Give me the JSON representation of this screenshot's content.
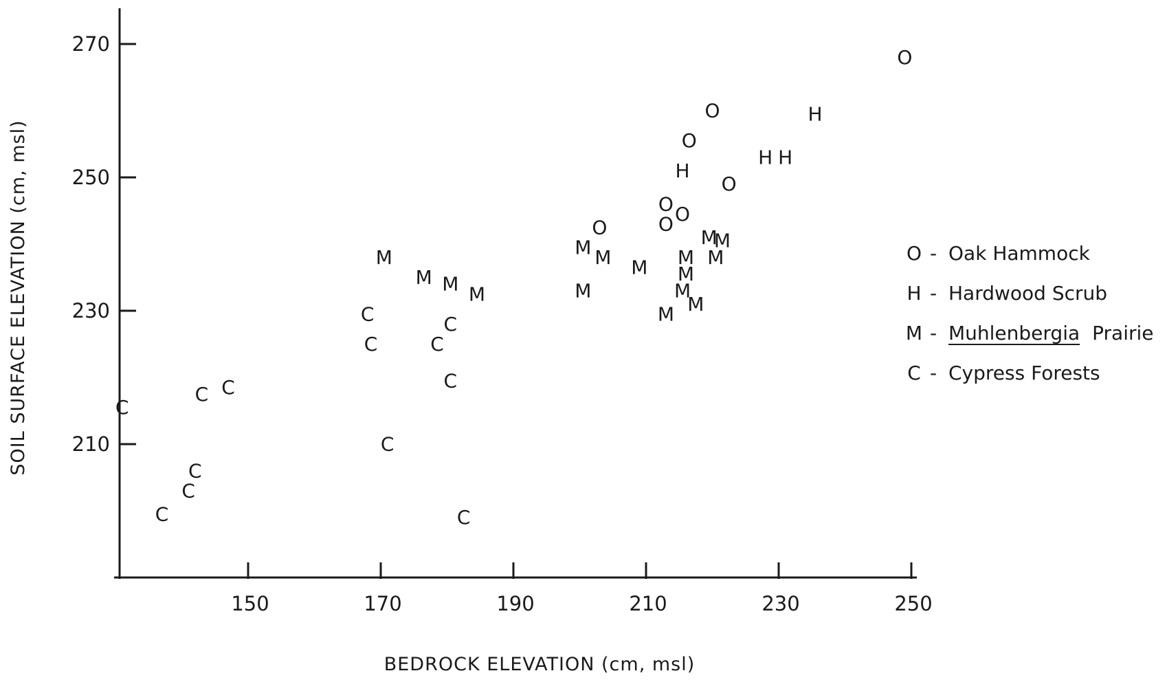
{
  "chart_data": {
    "type": "scatter",
    "xlabel": "BEDROCK ELEVATION   (cm, msl)",
    "ylabel": "SOIL SURFACE ELEVATION   (cm, msl)",
    "xlim": [
      130,
      250
    ],
    "ylim": [
      190,
      275
    ],
    "xticks": [
      150,
      170,
      190,
      210,
      230,
      250
    ],
    "yticks": [
      210,
      230,
      250,
      270
    ],
    "grid": false,
    "legend_position": "right",
    "series": [
      {
        "symbol": "O",
        "name": "Oak Hammock",
        "name_underlined": "",
        "points": [
          {
            "x": 249,
            "y": 268
          },
          {
            "x": 220,
            "y": 260
          },
          {
            "x": 216.5,
            "y": 255.5
          },
          {
            "x": 222.5,
            "y": 249
          },
          {
            "x": 213,
            "y": 246
          },
          {
            "x": 215.5,
            "y": 244.5
          },
          {
            "x": 213,
            "y": 243
          },
          {
            "x": 203,
            "y": 242.5
          }
        ]
      },
      {
        "symbol": "H",
        "name": "Hardwood Scrub",
        "name_underlined": "",
        "points": [
          {
            "x": 235.5,
            "y": 259.5
          },
          {
            "x": 228,
            "y": 253
          },
          {
            "x": 231,
            "y": 253
          },
          {
            "x": 215.5,
            "y": 251
          }
        ]
      },
      {
        "symbol": "M",
        "name": "Prairie",
        "name_underlined": "Muhlenbergia",
        "points": [
          {
            "x": 170.5,
            "y": 238
          },
          {
            "x": 176.5,
            "y": 235
          },
          {
            "x": 180.5,
            "y": 234
          },
          {
            "x": 184.5,
            "y": 232.5
          },
          {
            "x": 200.5,
            "y": 239.5
          },
          {
            "x": 203.5,
            "y": 238
          },
          {
            "x": 209,
            "y": 236.5
          },
          {
            "x": 200.5,
            "y": 233
          },
          {
            "x": 219.5,
            "y": 241
          },
          {
            "x": 221.5,
            "y": 240.5
          },
          {
            "x": 216,
            "y": 238
          },
          {
            "x": 220.5,
            "y": 238
          },
          {
            "x": 216,
            "y": 235.5
          },
          {
            "x": 215.5,
            "y": 233
          },
          {
            "x": 217.5,
            "y": 231
          },
          {
            "x": 213,
            "y": 229.5
          }
        ]
      },
      {
        "symbol": "C",
        "name": "Cypress Forests",
        "name_underlined": "",
        "points": [
          {
            "x": 131,
            "y": 215.5
          },
          {
            "x": 143,
            "y": 217.5
          },
          {
            "x": 147,
            "y": 218.5
          },
          {
            "x": 142,
            "y": 206
          },
          {
            "x": 141,
            "y": 203
          },
          {
            "x": 137,
            "y": 199.5
          },
          {
            "x": 168,
            "y": 229.5
          },
          {
            "x": 168.5,
            "y": 225
          },
          {
            "x": 178.5,
            "y": 225
          },
          {
            "x": 180.5,
            "y": 228
          },
          {
            "x": 180.5,
            "y": 219.5
          },
          {
            "x": 171,
            "y": 210
          },
          {
            "x": 182.5,
            "y": 199
          }
        ]
      }
    ]
  }
}
